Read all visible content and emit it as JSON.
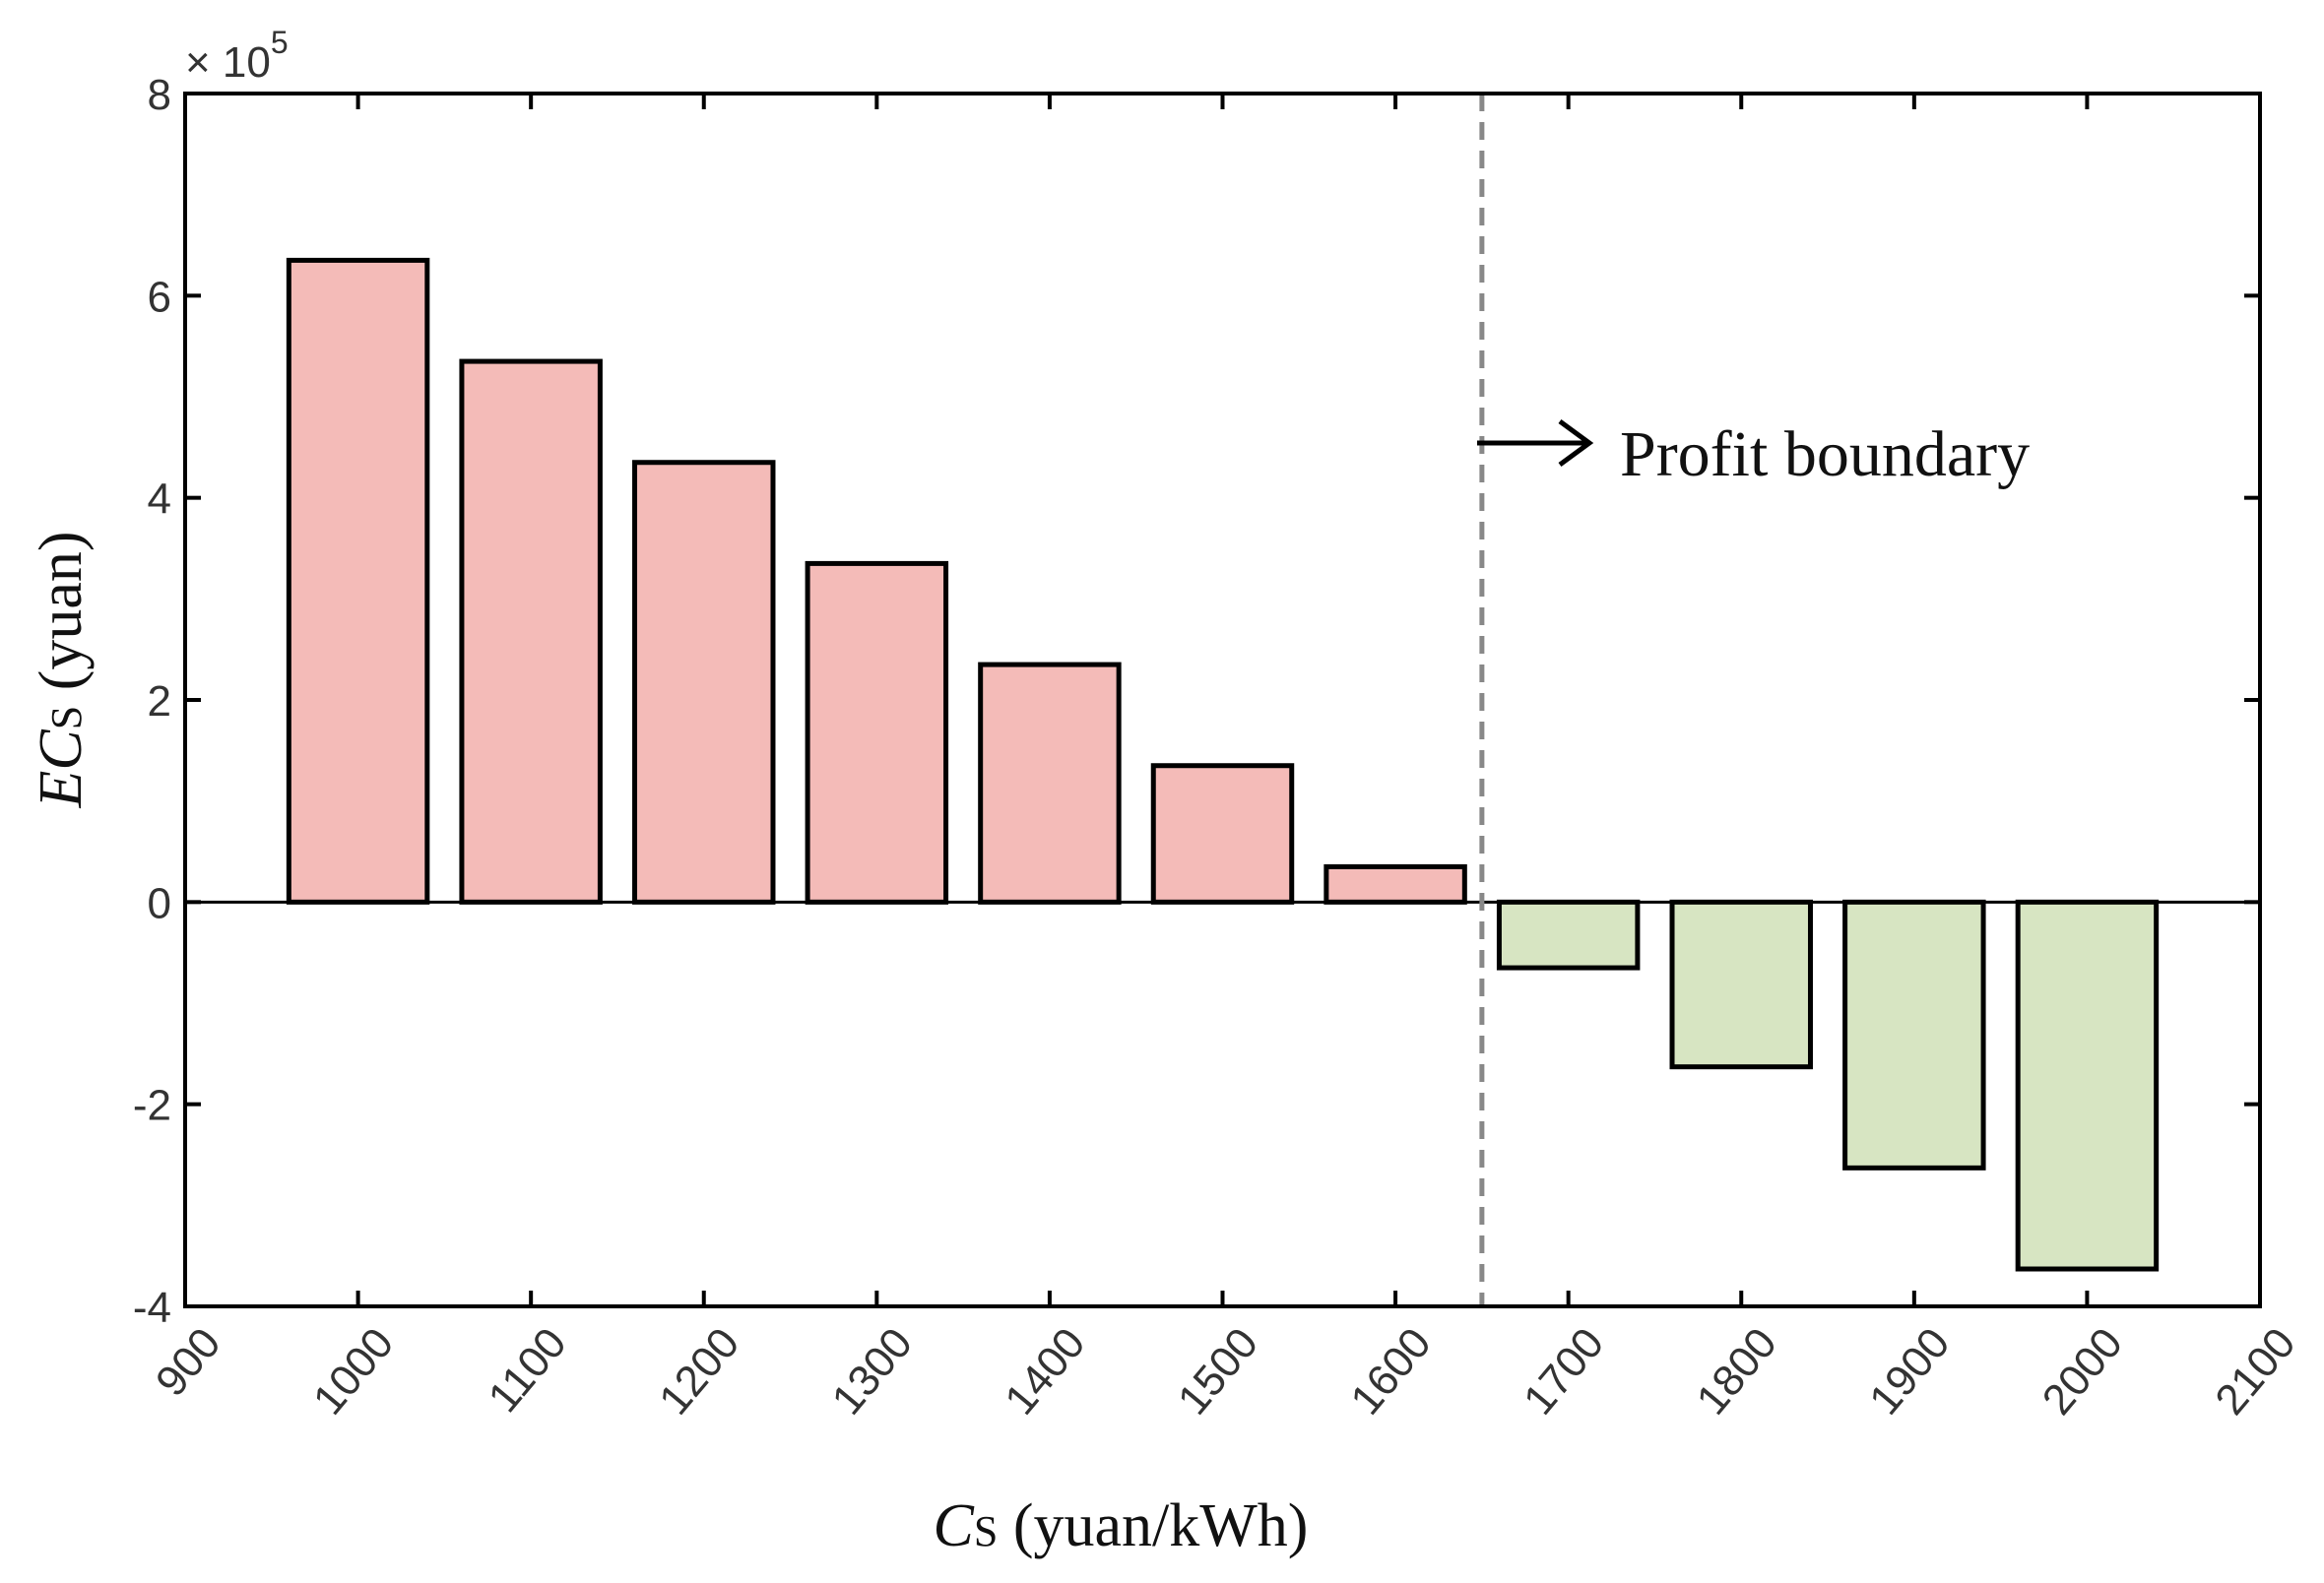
{
  "chart_data": {
    "type": "bar",
    "x": [
      1000,
      1100,
      1200,
      1300,
      1400,
      1500,
      1600,
      1700,
      1800,
      1900,
      2000
    ],
    "values": [
      6.35,
      5.35,
      4.35,
      3.35,
      2.35,
      1.35,
      0.35,
      -0.65,
      -1.63,
      -2.63,
      -3.63
    ],
    "value_scale_label": "× 10",
    "value_scale_exponent": "5",
    "xlim": [
      900,
      2100
    ],
    "ylim": [
      -4,
      8
    ],
    "xticks": [
      "900",
      "1000",
      "1100",
      "1200",
      "1300",
      "1400",
      "1500",
      "1600",
      "1700",
      "1800",
      "1900",
      "2000",
      "2100"
    ],
    "yticks": [
      "-4",
      "-2",
      "0",
      "2",
      "4",
      "6",
      "8"
    ],
    "xlabel": {
      "main": "C",
      "sub": "S",
      "rest": " (yuan/kWh)"
    },
    "ylabel": {
      "main": "EC",
      "sub": "S",
      "rest": " (yuan)"
    },
    "boundary_x": 1650,
    "annotation": "Profit boundary",
    "colors": {
      "positive": "#f4bbb8",
      "negative": "#d7e5c2",
      "outline": "#000000",
      "boundary": "#888888"
    }
  }
}
